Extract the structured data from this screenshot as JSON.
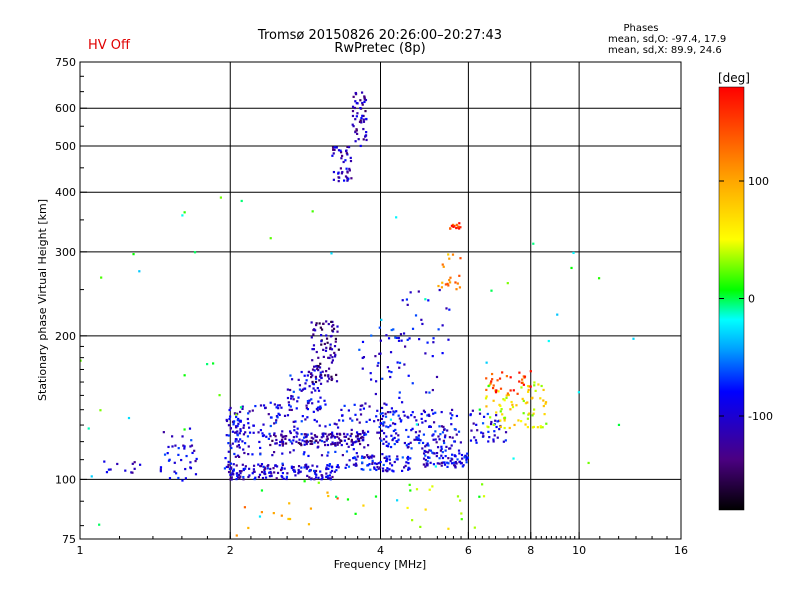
{
  "status": {
    "hv_label": "HV Off",
    "hv_color": "#e00000"
  },
  "chart_data": {
    "type": "scatter",
    "title": "Tromsø 20150826 20:26:00–20:27:43",
    "subtitle": "RwPretec (8p)",
    "stats": {
      "heading": "Phases",
      "line1": "mean, sd,O: -97.4, 17.9",
      "line2": "mean, sd,X:  89.9, 24.6"
    },
    "xlabel": "Frequency [MHz]",
    "ylabel": "Stationary phase Virtual Height [km]",
    "x_scale": "log",
    "y_scale": "log",
    "xlim": [
      1,
      16
    ],
    "ylim": [
      75,
      750
    ],
    "x_ticks": [
      1,
      2,
      4,
      6,
      8,
      10,
      16
    ],
    "x_tick_labels": [
      "1",
      "2",
      "4",
      "6",
      "8",
      "10",
      "16"
    ],
    "y_ticks": [
      75,
      100,
      200,
      300,
      400,
      500,
      600,
      750
    ],
    "y_tick_labels": [
      "75",
      "100",
      "200",
      "300",
      "400",
      "500",
      "600",
      "750"
    ],
    "x_grid": [
      2,
      4,
      6,
      8,
      10
    ],
    "y_grid": [
      100,
      200,
      300,
      400,
      500,
      600
    ],
    "grid": true,
    "colorbar": {
      "label": "[deg]",
      "min": -180,
      "max": 180,
      "ticks": [
        100,
        0,
        -100
      ],
      "tick_labels": [
        "100",
        "0",
        "-100"
      ]
    },
    "point_groups": [
      {
        "fmin": 1.08,
        "fmax": 1.32,
        "hmin": 102,
        "hmax": 110,
        "count": 12,
        "phase": -105
      },
      {
        "fmin": 1.45,
        "fmax": 1.72,
        "hmin": 97,
        "hmax": 128,
        "count": 40,
        "phase": -95
      },
      {
        "fmin": 1.95,
        "fmax": 2.1,
        "hmin": 102,
        "hmax": 142,
        "count": 60,
        "phase": -100
      },
      {
        "fmin": 2.0,
        "fmax": 3.3,
        "hmin": 100,
        "hmax": 108,
        "count": 150,
        "phase": -100
      },
      {
        "fmin": 2.0,
        "fmax": 4.2,
        "hmin": 112,
        "hmax": 145,
        "count": 220,
        "phase": -95
      },
      {
        "fmin": 2.4,
        "fmax": 3.7,
        "hmin": 118,
        "hmax": 125,
        "count": 110,
        "phase": -120
      },
      {
        "fmin": 2.6,
        "fmax": 3.1,
        "hmin": 140,
        "hmax": 170,
        "count": 60,
        "phase": -95
      },
      {
        "fmin": 2.9,
        "fmax": 3.3,
        "hmin": 160,
        "hmax": 215,
        "count": 90,
        "phase": -130
      },
      {
        "fmin": 3.2,
        "fmax": 3.5,
        "hmin": 420,
        "hmax": 500,
        "count": 45,
        "phase": -110
      },
      {
        "fmin": 3.5,
        "fmax": 3.75,
        "hmin": 500,
        "hmax": 650,
        "count": 55,
        "phase": -115
      },
      {
        "fmin": 3.6,
        "fmax": 4.5,
        "hmin": 140,
        "hmax": 210,
        "count": 40,
        "phase": -90
      },
      {
        "fmin": 3.4,
        "fmax": 4.6,
        "hmin": 104,
        "hmax": 112,
        "count": 80,
        "phase": -90
      },
      {
        "fmin": 4.0,
        "fmax": 5.8,
        "hmin": 115,
        "hmax": 140,
        "count": 140,
        "phase": -95
      },
      {
        "fmin": 4.8,
        "fmax": 6.0,
        "hmin": 106,
        "hmax": 115,
        "count": 80,
        "phase": -95
      },
      {
        "fmin": 4.3,
        "fmax": 5.5,
        "hmin": 150,
        "hmax": 250,
        "count": 35,
        "phase": -90
      },
      {
        "fmin": 5.2,
        "fmax": 5.8,
        "hmin": 250,
        "hmax": 300,
        "count": 20,
        "phase": 110
      },
      {
        "fmin": 5.5,
        "fmax": 5.8,
        "hmin": 335,
        "hmax": 345,
        "count": 14,
        "phase": 150
      },
      {
        "fmin": 6.0,
        "fmax": 7.2,
        "hmin": 118,
        "hmax": 140,
        "count": 40,
        "phase": -90
      },
      {
        "fmin": 6.5,
        "fmax": 8.6,
        "hmin": 128,
        "hmax": 160,
        "count": 80,
        "phase": 60
      },
      {
        "fmin": 6.5,
        "fmax": 8.0,
        "hmin": 150,
        "hmax": 170,
        "count": 30,
        "phase": 150
      },
      {
        "fmin": 4.5,
        "fmax": 6.5,
        "hmin": 78,
        "hmax": 98,
        "count": 18,
        "phase": 40
      },
      {
        "fmin": 2.0,
        "fmax": 4.0,
        "hmin": 76,
        "hmax": 95,
        "count": 15,
        "phase": 110
      },
      {
        "fmin": 1.0,
        "fmax": 14.0,
        "hmin": 80,
        "hmax": 400,
        "count": 55,
        "phase": 0
      }
    ]
  }
}
